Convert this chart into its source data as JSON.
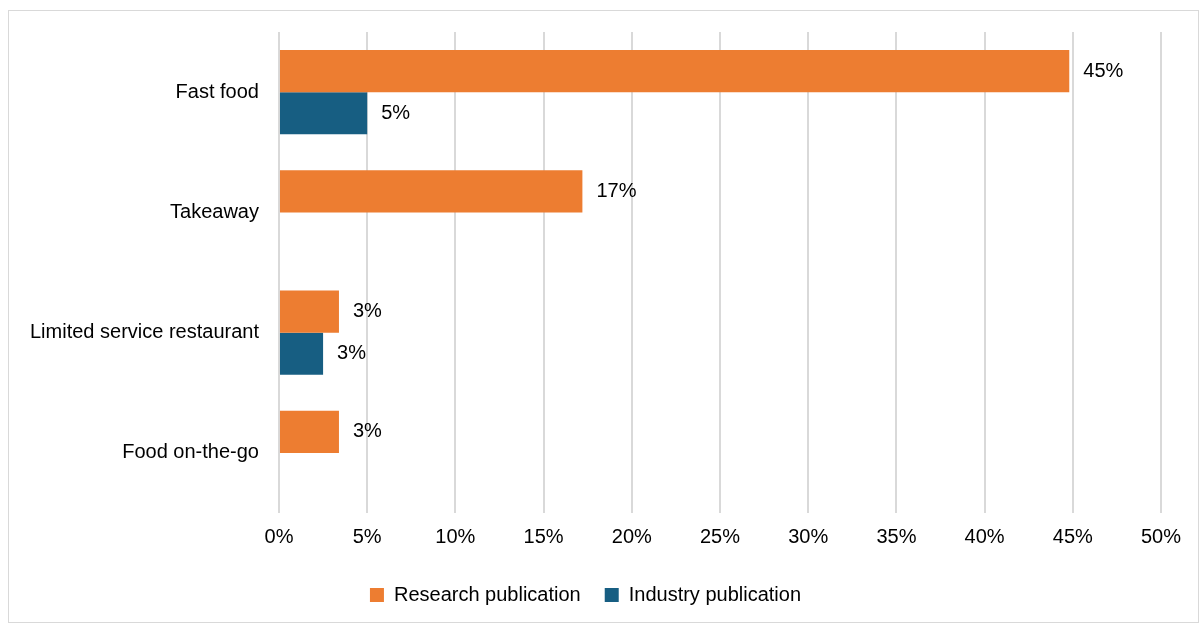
{
  "chart_data": {
    "type": "bar",
    "orientation": "horizontal",
    "categories": [
      "Fast food",
      "Takeaway",
      "Limited service restaurant",
      "Food on-the-go"
    ],
    "series": [
      {
        "name": "Research publication",
        "color": "#ed7d31",
        "values": [
          44.8,
          17.2,
          3.4,
          3.4
        ],
        "value_labels": [
          "45%",
          "17%",
          "3%",
          "3%"
        ]
      },
      {
        "name": "Industry publication",
        "color": "#175e82",
        "values": [
          5,
          null,
          2.5,
          null
        ],
        "value_labels": [
          "5%",
          null,
          "3%",
          null
        ]
      }
    ],
    "xlim": [
      0,
      50
    ],
    "xticks": [
      {
        "value": 0,
        "label": "0%"
      },
      {
        "value": 5,
        "label": "5%"
      },
      {
        "value": 10,
        "label": "10%"
      },
      {
        "value": 15,
        "label": "15%"
      },
      {
        "value": 20,
        "label": "20%"
      },
      {
        "value": 25,
        "label": "25%"
      },
      {
        "value": 30,
        "label": "30%"
      },
      {
        "value": 35,
        "label": "35%"
      },
      {
        "value": 40,
        "label": "40%"
      },
      {
        "value": 45,
        "label": "45%"
      },
      {
        "value": 50,
        "label": "50%"
      }
    ],
    "grid": "x",
    "legend": "bottom"
  }
}
